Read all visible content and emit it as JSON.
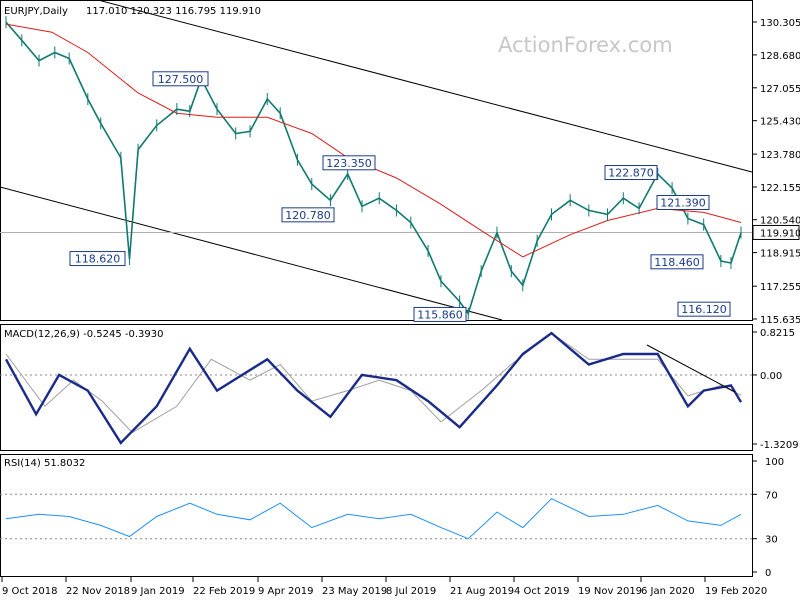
{
  "header": {
    "symbol": "EURJPY,Daily",
    "ohlc": "117.010 120.323 116.795 119.910",
    "watermark": "ActionForex.com"
  },
  "chart_data": [
    {
      "type": "candlestick",
      "panel": "price",
      "title": "EURJPY,Daily",
      "ylim": [
        115.635,
        131.0
      ],
      "grid": false,
      "y_ticks": [
        "130.305",
        "128.680",
        "127.055",
        "125.430",
        "123.780",
        "122.155",
        "120.540",
        "118.915",
        "117.255",
        "115.635"
      ],
      "last_price": "119.910",
      "x_ticks": [
        "9 Oct 2018",
        "22 Nov 2018",
        "9 Jan 2019",
        "22 Feb 2019",
        "9 Apr 2019",
        "23 May 2019",
        "8 Jul 2019",
        "21 Aug 2019",
        "4 Oct 2019",
        "19 Nov 2019",
        "6 Jan 2020",
        "19 Feb 2020"
      ],
      "series": [
        {
          "name": "close",
          "x": [
            "2018-10-09",
            "2018-10-20",
            "2018-11-01",
            "2018-11-12",
            "2018-11-22",
            "2018-12-05",
            "2018-12-14",
            "2018-12-28",
            "2019-01-03",
            "2019-01-09",
            "2019-01-22",
            "2019-02-05",
            "2019-02-14",
            "2019-02-22",
            "2019-03-05",
            "2019-03-18",
            "2019-03-28",
            "2019-04-09",
            "2019-04-18",
            "2019-04-30",
            "2019-05-10",
            "2019-05-23",
            "2019-06-04",
            "2019-06-14",
            "2019-06-26",
            "2019-07-08",
            "2019-07-18",
            "2019-07-30",
            "2019-08-08",
            "2019-08-21",
            "2019-08-27",
            "2019-09-05",
            "2019-09-16",
            "2019-09-26",
            "2019-10-04",
            "2019-10-14",
            "2019-10-24",
            "2019-11-06",
            "2019-11-19",
            "2019-12-02",
            "2019-12-13",
            "2019-12-24",
            "2020-01-06",
            "2020-01-16",
            "2020-01-27",
            "2020-02-07",
            "2020-02-19",
            "2020-02-26",
            "2020-03-04"
          ],
          "values": [
            130.3,
            129.4,
            128.4,
            128.8,
            128.5,
            126.5,
            125.3,
            123.6,
            118.6,
            124.0,
            125.2,
            126.0,
            125.9,
            127.5,
            126.0,
            124.8,
            124.9,
            126.5,
            125.8,
            123.5,
            122.3,
            121.5,
            122.8,
            121.2,
            121.6,
            121.0,
            120.4,
            119.0,
            117.5,
            116.5,
            115.9,
            118.0,
            119.9,
            118.0,
            117.3,
            119.5,
            120.8,
            121.5,
            121.0,
            120.8,
            121.6,
            121.1,
            122.8,
            122.1,
            120.6,
            120.3,
            118.5,
            118.4,
            119.9
          ]
        },
        {
          "name": "sma",
          "x": [
            "2018-10-09",
            "2018-11-10",
            "2018-12-05",
            "2019-01-09",
            "2019-02-05",
            "2019-03-05",
            "2019-04-09",
            "2019-05-10",
            "2019-06-04",
            "2019-07-08",
            "2019-08-08",
            "2019-09-05",
            "2019-10-04",
            "2019-11-06",
            "2019-12-02",
            "2020-01-06",
            "2020-02-07",
            "2020-03-04"
          ],
          "values": [
            130.2,
            129.8,
            128.8,
            126.8,
            125.8,
            125.6,
            125.6,
            124.8,
            123.6,
            122.6,
            121.3,
            120.0,
            118.7,
            119.8,
            120.5,
            121.1,
            120.9,
            120.4
          ]
        }
      ],
      "annotations": [
        "127.500",
        "123.350",
        "120.780",
        "118.620",
        "115.860",
        "122.870",
        "121.390",
        "118.460",
        "116.120"
      ]
    },
    {
      "type": "line",
      "panel": "macd",
      "title": "MACD(12,26,9) -0.5245 -0.3930",
      "y_ticks": [
        "0.8215",
        "0.00",
        "-1.3209"
      ],
      "series": [
        {
          "name": "MACD",
          "x": [
            "2018-10-09",
            "2018-10-30",
            "2018-11-15",
            "2018-12-05",
            "2018-12-28",
            "2019-01-22",
            "2019-02-14",
            "2019-03-05",
            "2019-04-09",
            "2019-04-30",
            "2019-05-23",
            "2019-06-14",
            "2019-07-08",
            "2019-07-30",
            "2019-08-21",
            "2019-09-16",
            "2019-10-04",
            "2019-10-24",
            "2019-11-19",
            "2019-12-13",
            "2020-01-06",
            "2020-01-27",
            "2020-02-07",
            "2020-02-26",
            "2020-03-04"
          ],
          "values": [
            0.3,
            -0.75,
            0.0,
            -0.3,
            -1.3,
            -0.6,
            0.5,
            -0.3,
            0.3,
            -0.3,
            -0.8,
            0.0,
            -0.1,
            -0.5,
            -1.0,
            -0.2,
            0.4,
            0.8,
            0.2,
            0.4,
            0.4,
            -0.6,
            -0.3,
            -0.2,
            -0.52
          ]
        },
        {
          "name": "Signal",
          "x": [
            "2018-10-09",
            "2018-11-05",
            "2018-11-25",
            "2018-12-15",
            "2019-01-05",
            "2019-02-05",
            "2019-03-01",
            "2019-03-28",
            "2019-04-18",
            "2019-05-10",
            "2019-06-04",
            "2019-06-26",
            "2019-07-18",
            "2019-08-08",
            "2019-09-05",
            "2019-09-26",
            "2019-10-24",
            "2019-11-19",
            "2019-12-13",
            "2020-01-06",
            "2020-01-27",
            "2020-02-19",
            "2020-03-04"
          ],
          "values": [
            0.4,
            -0.6,
            -0.1,
            -0.5,
            -1.1,
            -0.6,
            0.3,
            -0.1,
            0.2,
            -0.5,
            -0.3,
            -0.1,
            -0.3,
            -0.9,
            -0.3,
            0.2,
            0.8,
            0.3,
            0.3,
            0.3,
            -0.4,
            -0.2,
            -0.39
          ]
        }
      ]
    },
    {
      "type": "line",
      "panel": "rsi",
      "title": "RSI(14) 51.8032",
      "ylim": [
        0,
        100
      ],
      "y_ticks": [
        "100",
        "70",
        "30",
        "0"
      ],
      "series": [
        {
          "name": "RSI(14)",
          "x": [
            "2018-10-09",
            "2018-11-01",
            "2018-11-22",
            "2018-12-14",
            "2019-01-03",
            "2019-01-22",
            "2019-02-14",
            "2019-03-05",
            "2019-03-28",
            "2019-04-18",
            "2019-05-10",
            "2019-06-04",
            "2019-06-26",
            "2019-07-18",
            "2019-08-08",
            "2019-08-27",
            "2019-09-16",
            "2019-10-04",
            "2019-10-24",
            "2019-11-19",
            "2019-12-13",
            "2020-01-06",
            "2020-01-27",
            "2020-02-19",
            "2020-03-04"
          ],
          "values": [
            48,
            52,
            50,
            42,
            32,
            50,
            62,
            52,
            47,
            62,
            40,
            52,
            48,
            52,
            40,
            30,
            54,
            40,
            66,
            50,
            52,
            60,
            46,
            42,
            52
          ]
        }
      ]
    }
  ]
}
